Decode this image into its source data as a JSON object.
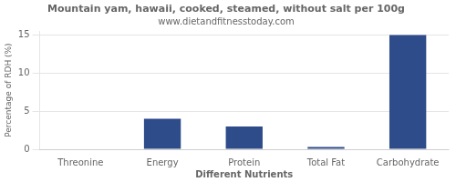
{
  "chart_data": {
    "type": "bar",
    "title": "Mountain yam, hawaii, cooked, steamed, without salt per 100g",
    "subtitle": "www.dietandfitnesstoday.com",
    "xlabel": "Different Nutrients",
    "ylabel": "Percentage of RDH (%)",
    "categories": [
      "Threonine",
      "Energy",
      "Protein",
      "Total Fat",
      "Carbohydrate"
    ],
    "values": [
      0,
      4,
      3,
      0.3,
      15
    ],
    "color": "#2e4b8a",
    "ylim": [
      0,
      15.5
    ],
    "yticks": [
      0,
      5,
      10,
      15
    ],
    "grid": true
  }
}
